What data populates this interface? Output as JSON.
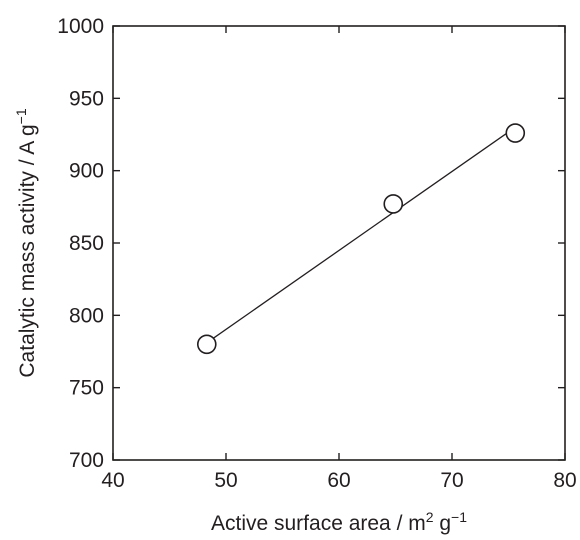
{
  "chart_data": {
    "type": "scatter",
    "xlabel": {
      "main": "Active surface area / m",
      "sup1": "2",
      "mid": " g",
      "sup2": "−1"
    },
    "ylabel": {
      "main": "Catalytic mass activity / A g",
      "sup": "−1"
    },
    "xlim": [
      40,
      80
    ],
    "ylim": [
      700,
      1000
    ],
    "xticks": [
      40,
      50,
      60,
      70,
      80
    ],
    "yticks": [
      700,
      750,
      800,
      850,
      900,
      950,
      1000
    ],
    "grid": false,
    "legend": "none",
    "marker": "open-circle",
    "points": [
      {
        "x": 48.3,
        "y": 780
      },
      {
        "x": 64.8,
        "y": 877
      },
      {
        "x": 75.6,
        "y": 926
      }
    ],
    "fit_line": {
      "x": [
        48.3,
        75.6
      ],
      "y": [
        781,
        930
      ]
    },
    "colors": {
      "ink": "#231f20",
      "marker_fill": "#ffffff"
    }
  }
}
